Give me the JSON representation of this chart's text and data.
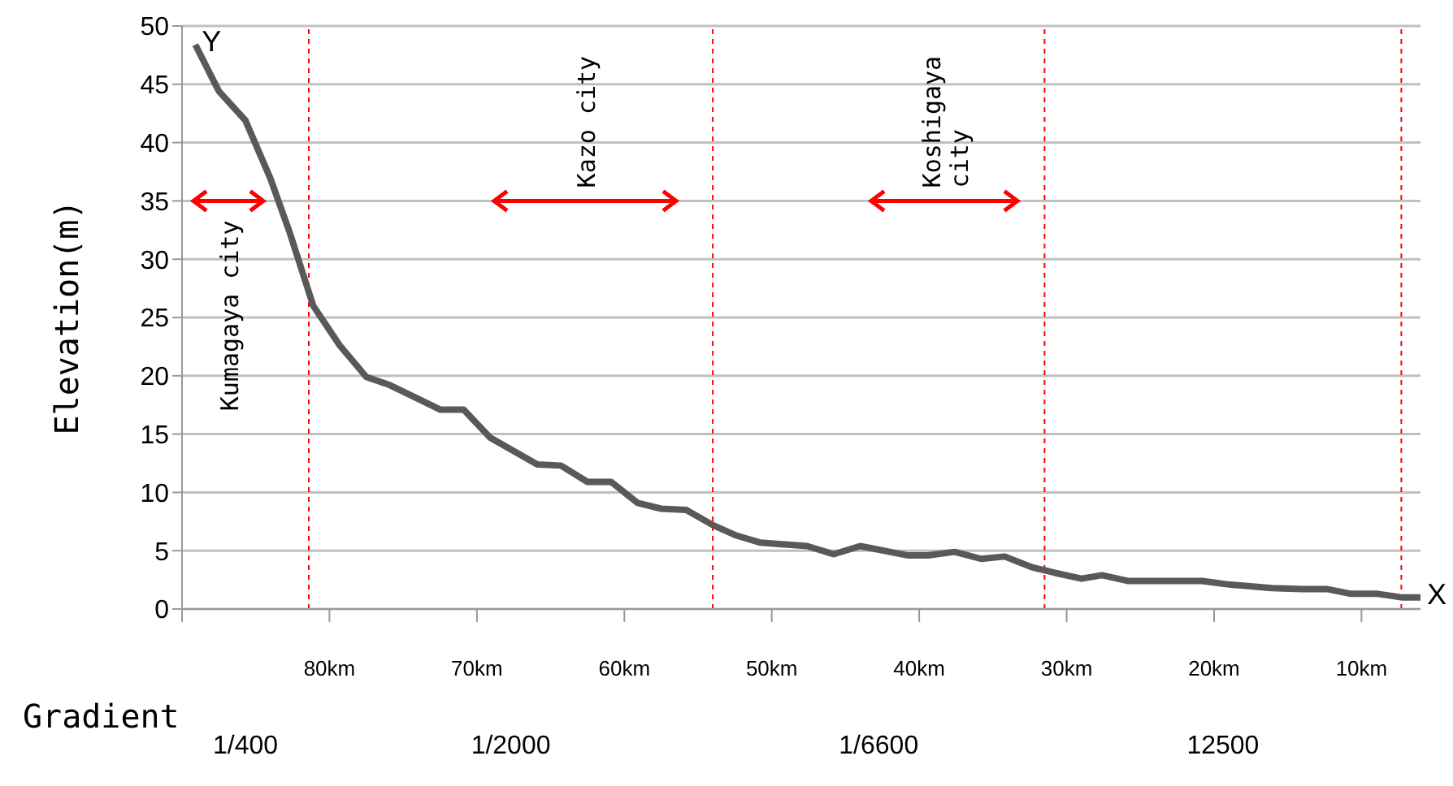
{
  "chart_data": {
    "type": "line",
    "ylabel": "Elevation(m)",
    "x": [
      89.1,
      87.5,
      85.7,
      84.0,
      82.7,
      81.1,
      79.3,
      77.5,
      75.9,
      72.5,
      70.9,
      69.1,
      65.9,
      64.3,
      62.5,
      60.9,
      59.1,
      57.5,
      55.8,
      54.0,
      52.4,
      50.8,
      47.6,
      45.8,
      44.0,
      40.8,
      39.4,
      37.6,
      35.8,
      34.2,
      32.4,
      30.8,
      29.0,
      27.6,
      25.8,
      20.8,
      19.0,
      16.1,
      14.0,
      12.3,
      10.7,
      8.9,
      7.3,
      6.0
    ],
    "series": [
      {
        "color": "#595959",
        "values": [
          48.4,
          44.4,
          41.9,
          36.9,
          32.3,
          26.0,
          22.6,
          19.9,
          19.2,
          17.1,
          17.1,
          14.7,
          12.4,
          12.3,
          10.9,
          10.9,
          9.1,
          8.6,
          8.5,
          7.2,
          6.3,
          5.7,
          5.4,
          4.7,
          5.4,
          4.6,
          4.6,
          4.9,
          4.3,
          4.5,
          3.6,
          3.1,
          2.6,
          2.9,
          2.4,
          2.4,
          2.1,
          1.8,
          1.7,
          1.7,
          1.3,
          1.3,
          1.0,
          1.0
        ]
      }
    ],
    "xlim": [
      90,
      6
    ],
    "xticks": [
      {
        "value": 90,
        "label": null
      },
      {
        "value": 80,
        "label": "80km"
      },
      {
        "value": 70,
        "label": "70km"
      },
      {
        "value": 60,
        "label": "60km"
      },
      {
        "value": 50,
        "label": "50km"
      },
      {
        "value": 40,
        "label": "40km"
      },
      {
        "value": 30,
        "label": "30km"
      },
      {
        "value": 20,
        "label": "20km"
      },
      {
        "value": 10,
        "label": "10km"
      }
    ],
    "ylim": [
      0,
      50
    ],
    "yticks": [
      0,
      5,
      10,
      15,
      20,
      25,
      30,
      35,
      40,
      45,
      50
    ],
    "grid": "y",
    "ref_lines": [
      {
        "axis": "x",
        "value": 81.4,
        "color": "#ff0000",
        "line_style": "dashed"
      },
      {
        "axis": "x",
        "value": 54.0,
        "color": "#ff0000",
        "line_style": "dashed"
      },
      {
        "axis": "x",
        "value": 31.5,
        "color": "#ff0000",
        "line_style": "dashed"
      },
      {
        "axis": "x",
        "value": 7.3,
        "color": "#ff0000",
        "line_style": "dashed"
      }
    ],
    "annotations": [
      {
        "text": "Y",
        "x": 89.1,
        "y": 48.4
      },
      {
        "text": "X",
        "x": 6.0,
        "y": 1.0
      },
      "Gradient",
      "Kumagaya city",
      "Kazo city",
      "Koshigaya\ncity",
      "1/400",
      "1/2000",
      "1/6600",
      "12500"
    ]
  }
}
